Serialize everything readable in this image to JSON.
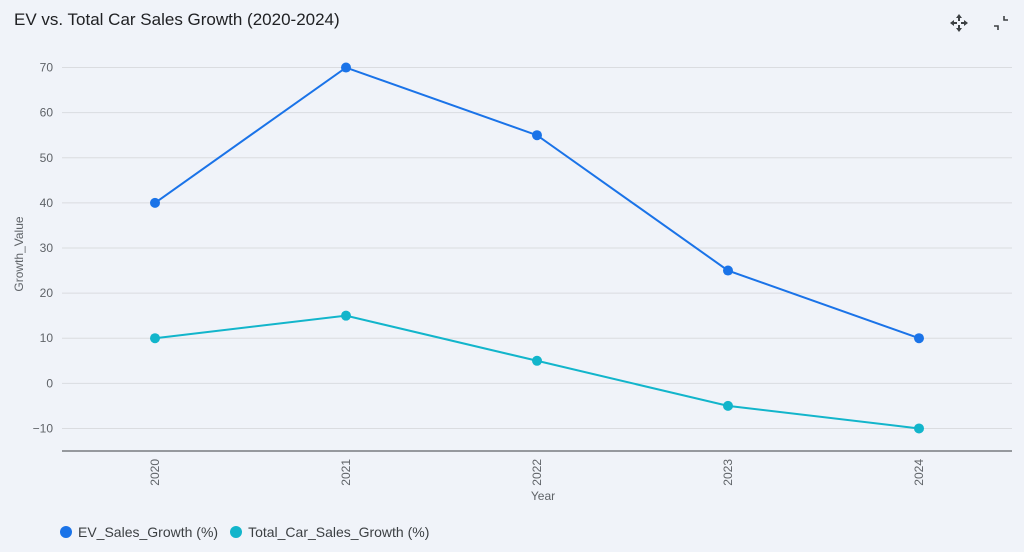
{
  "title": "EV vs. Total Car Sales Growth (2020-2024)",
  "toolbar": {
    "icons": [
      "move-icon",
      "collapse-icon"
    ]
  },
  "chart_data": {
    "type": "line",
    "x": [
      "2020",
      "2021",
      "2022",
      "2023",
      "2024"
    ],
    "xlabel": "Year",
    "ylabel": "Growth_Value",
    "ylim": [
      -15,
      75
    ],
    "yticks": [
      70,
      60,
      50,
      40,
      30,
      20,
      10,
      0,
      -10
    ],
    "ytick_labels": [
      "70",
      "60",
      "50",
      "40",
      "30",
      "20",
      "10",
      "0",
      "−10"
    ],
    "grid": true,
    "legend_position": "bottom-left",
    "series": [
      {
        "name": "EV_Sales_Growth (%)",
        "color": "#1a73e8",
        "values": [
          40,
          70,
          55,
          25,
          10
        ]
      },
      {
        "name": "Total_Car_Sales_Growth (%)",
        "color": "#12b5cb",
        "values": [
          10,
          15,
          5,
          -5,
          -10
        ]
      }
    ]
  }
}
